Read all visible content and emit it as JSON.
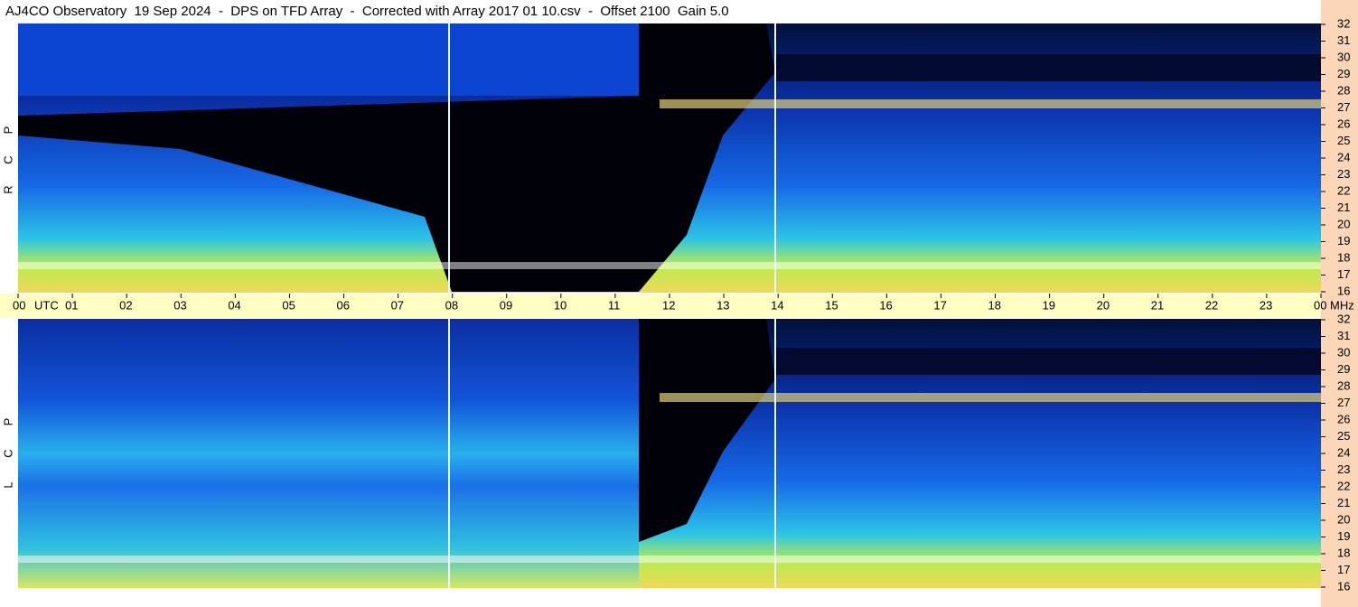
{
  "chart_data": {
    "type": "spectrogram",
    "title": "AJ4CO Observatory  19 Sep 2024  -  DPS on TFD Array  -  Corrected with Array 2017 01 10.csv  -  Offset 2100  Gain 5.0",
    "x_unit": "UTC",
    "y_unit": "MHz",
    "xlim": [
      0,
      24
    ],
    "xticks": [
      {
        "value": 0,
        "label": "00"
      },
      {
        "value": 1,
        "label": "01"
      },
      {
        "value": 2,
        "label": "02"
      },
      {
        "value": 3,
        "label": "03"
      },
      {
        "value": 4,
        "label": "04"
      },
      {
        "value": 5,
        "label": "05"
      },
      {
        "value": 6,
        "label": "06"
      },
      {
        "value": 7,
        "label": "07"
      },
      {
        "value": 8,
        "label": "08"
      },
      {
        "value": 9,
        "label": "09"
      },
      10,
      11,
      12,
      13,
      14,
      15,
      16,
      17,
      18,
      19,
      20,
      21,
      22,
      23,
      {
        "value": 24,
        "label": "00"
      }
    ],
    "ylim": [
      16,
      32
    ],
    "yticks": [
      16,
      17,
      18,
      19,
      20,
      21,
      22,
      23,
      24,
      25,
      26,
      27,
      28,
      29,
      30,
      31,
      32
    ],
    "panels": [
      {
        "letters": [
          "R",
          "C",
          "P"
        ]
      },
      {
        "letters": [
          "L",
          "C",
          "P"
        ]
      }
    ]
  }
}
